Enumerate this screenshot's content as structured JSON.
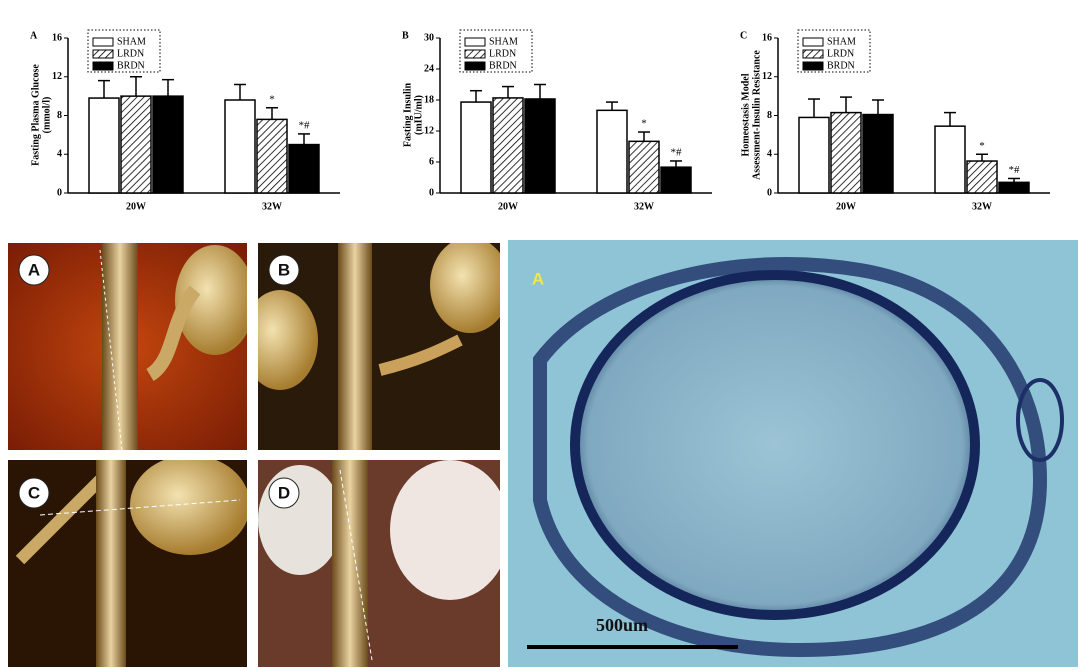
{
  "chart_data": [
    {
      "type": "bar",
      "panel": "A",
      "y_label": [
        "Fasting Plasma Glucose",
        "(mmol/l)"
      ],
      "categories": [
        "20W",
        "32W"
      ],
      "ylim": [
        0,
        16
      ],
      "yticks": [
        0,
        4,
        8,
        12,
        16
      ],
      "series": [
        {
          "name": "SHAM",
          "color": "#ffffff",
          "hatch": false,
          "values": [
            9.8,
            9.6
          ],
          "errors": [
            1.8,
            1.6
          ],
          "markers": [
            null,
            null
          ]
        },
        {
          "name": "LRDN",
          "color": "#ffffff",
          "hatch": true,
          "values": [
            10.0,
            7.6
          ],
          "errors": [
            2.0,
            1.2
          ],
          "markers": [
            null,
            "*"
          ]
        },
        {
          "name": "BRDN",
          "color": "#000000",
          "hatch": false,
          "values": [
            10.0,
            5.0
          ],
          "errors": [
            1.7,
            1.1
          ],
          "markers": [
            null,
            "*#"
          ]
        }
      ]
    },
    {
      "type": "bar",
      "panel": "B",
      "y_label": [
        "Fasting Insulin",
        "(mIU/ml)"
      ],
      "categories": [
        "20W",
        "32W"
      ],
      "ylim": [
        0,
        30
      ],
      "yticks": [
        0,
        6,
        12,
        18,
        24,
        30
      ],
      "series": [
        {
          "name": "SHAM",
          "color": "#ffffff",
          "hatch": false,
          "values": [
            17.6,
            16.0
          ],
          "errors": [
            2.2,
            1.6
          ],
          "markers": [
            null,
            null
          ]
        },
        {
          "name": "LRDN",
          "color": "#ffffff",
          "hatch": true,
          "values": [
            18.4,
            10.0
          ],
          "errors": [
            2.2,
            1.8
          ],
          "markers": [
            null,
            "*"
          ]
        },
        {
          "name": "BRDN",
          "color": "#000000",
          "hatch": false,
          "values": [
            18.2,
            5.0
          ],
          "errors": [
            2.8,
            1.2
          ],
          "markers": [
            null,
            "*#"
          ]
        }
      ]
    },
    {
      "type": "bar",
      "panel": "C",
      "y_label": [
        "Homeostasis Model",
        "Assessment-Insulin Resistance"
      ],
      "categories": [
        "20W",
        "32W"
      ],
      "ylim": [
        0,
        16
      ],
      "yticks": [
        0,
        4,
        8,
        12,
        16
      ],
      "series": [
        {
          "name": "SHAM",
          "color": "#ffffff",
          "hatch": false,
          "values": [
            7.8,
            6.9
          ],
          "errors": [
            1.9,
            1.4
          ],
          "markers": [
            null,
            null
          ]
        },
        {
          "name": "LRDN",
          "color": "#ffffff",
          "hatch": true,
          "values": [
            8.3,
            3.3
          ],
          "errors": [
            1.6,
            0.7
          ],
          "markers": [
            null,
            "*"
          ]
        },
        {
          "name": "BRDN",
          "color": "#000000",
          "hatch": false,
          "values": [
            8.1,
            1.1
          ],
          "errors": [
            1.5,
            0.4
          ],
          "markers": [
            null,
            "*#"
          ]
        }
      ]
    }
  ],
  "images": {
    "ct_labels": [
      "A",
      "B",
      "C",
      "D"
    ],
    "histology_label": "A",
    "scale_bar": "500um"
  }
}
